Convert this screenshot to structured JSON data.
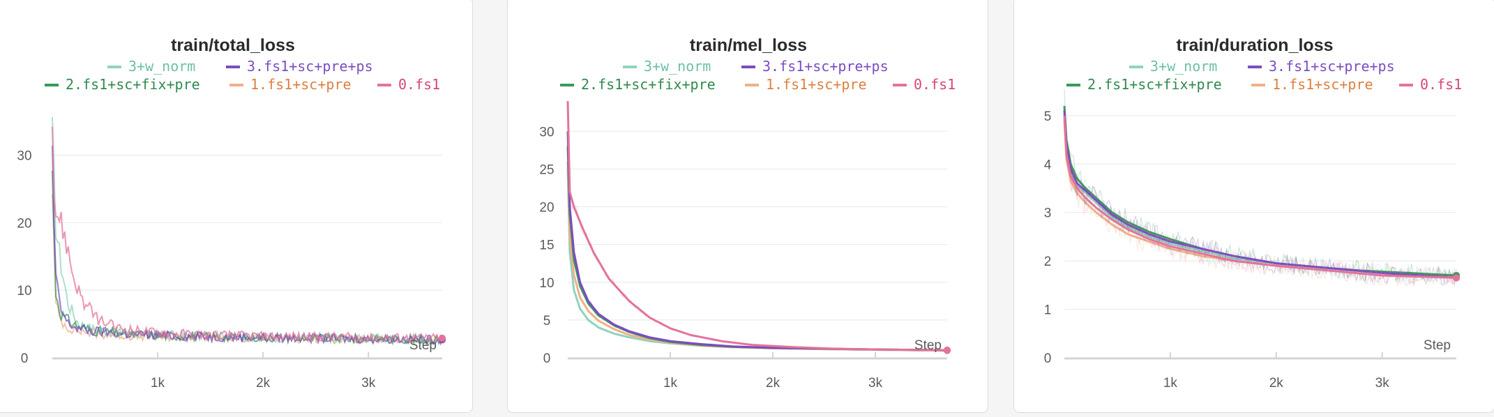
{
  "colors": {
    "3+w_norm": "#8fd3be",
    "3.fs1+sc+pre+ps": "#7b4cc2",
    "2.fs1+sc+fix+pre": "#3a9a5a",
    "1.fs1+sc+pre": "#f0b088",
    "0.fs1": "#e3739a"
  },
  "legend_text_colors": {
    "3+w_norm": "#6cc0a6",
    "3.fs1+sc+pre+ps": "#7b4cc2",
    "2.fs1+sc+fix+pre": "#2f8a4d",
    "1.fs1+sc+pre": "#dd7f3f",
    "0.fs1": "#d9466f"
  },
  "chart_data": [
    {
      "type": "line",
      "title": "train/total_loss",
      "xlabel": "Step",
      "xlim": [
        0,
        3700
      ],
      "ylim": [
        0,
        38
      ],
      "x_ticks": [
        1000,
        2000,
        3000
      ],
      "x_tick_labels": [
        "1k",
        "2k",
        "3k"
      ],
      "y_ticks": [
        0,
        10,
        20,
        30
      ],
      "series": [
        {
          "name": "3+w_norm",
          "x": [
            0,
            30,
            80,
            150,
            250,
            400,
            700,
            1000,
            1500,
            2000,
            2500,
            3000,
            3700
          ],
          "y": [
            33,
            20,
            14,
            8,
            5,
            4.2,
            3.6,
            3.4,
            3.2,
            3.0,
            2.9,
            2.8,
            2.6
          ]
        },
        {
          "name": "3.fs1+sc+pre+ps",
          "x": [
            0,
            30,
            80,
            150,
            250,
            400,
            700,
            1000,
            1500,
            2000,
            2500,
            3000,
            3700
          ],
          "y": [
            30,
            12,
            7,
            5,
            4.3,
            3.9,
            3.5,
            3.3,
            3.1,
            3.0,
            2.9,
            2.8,
            2.7
          ]
        },
        {
          "name": "2.fs1+sc+fix+pre",
          "x": [
            0,
            30,
            80,
            150,
            250,
            400,
            700,
            1000,
            1500,
            2000,
            2500,
            3000,
            3700
          ],
          "y": [
            28,
            10,
            6.5,
            5.5,
            4.6,
            4.0,
            3.5,
            3.3,
            3.1,
            3.0,
            2.9,
            2.8,
            2.7
          ]
        },
        {
          "name": "1.fs1+sc+pre",
          "x": [
            0,
            30,
            80,
            150,
            250,
            400,
            700,
            1000,
            1500,
            2000,
            2500,
            3000,
            3700
          ],
          "y": [
            26,
            8,
            5.5,
            4.5,
            4.0,
            3.6,
            3.3,
            3.1,
            3.0,
            2.9,
            2.8,
            2.7,
            2.6
          ]
        },
        {
          "name": "0.fs1",
          "x": [
            0,
            20,
            60,
            120,
            200,
            300,
            450,
            600,
            800,
            1000,
            1500,
            2000,
            2500,
            3000,
            3700
          ],
          "y": [
            38,
            22,
            21,
            18,
            12,
            8,
            5.5,
            4.5,
            4.0,
            3.7,
            3.4,
            3.2,
            3.1,
            3.0,
            2.9
          ]
        }
      ]
    },
    {
      "type": "line",
      "title": "train/mel_loss",
      "xlabel": "Step",
      "xlim": [
        0,
        3700
      ],
      "ylim": [
        0,
        34
      ],
      "x_ticks": [
        1000,
        2000,
        3000
      ],
      "x_tick_labels": [
        "1k",
        "2k",
        "3k"
      ],
      "y_ticks": [
        0,
        5,
        10,
        15,
        20,
        25,
        30
      ],
      "series": [
        {
          "name": "3+w_norm",
          "x": [
            0,
            20,
            60,
            120,
            200,
            300,
            450,
            600,
            800,
            1000,
            1300,
            1600,
            2000,
            2500,
            3000,
            3700
          ],
          "y": [
            25,
            14,
            9,
            6.5,
            5.0,
            4.0,
            3.2,
            2.7,
            2.2,
            1.9,
            1.6,
            1.4,
            1.25,
            1.15,
            1.05,
            0.95
          ]
        },
        {
          "name": "3.fs1+sc+pre+ps",
          "x": [
            0,
            20,
            60,
            120,
            200,
            300,
            450,
            600,
            800,
            1000,
            1300,
            1600,
            2000,
            2500,
            3000,
            3700
          ],
          "y": [
            30,
            20,
            14,
            10,
            7.5,
            5.8,
            4.4,
            3.5,
            2.7,
            2.2,
            1.8,
            1.5,
            1.3,
            1.2,
            1.1,
            1.0
          ]
        },
        {
          "name": "2.fs1+sc+fix+pre",
          "x": [
            0,
            20,
            60,
            120,
            200,
            300,
            450,
            600,
            800,
            1000,
            1300,
            1600,
            2000,
            2500,
            2750,
            3700
          ],
          "y": [
            28,
            19,
            13,
            9.5,
            7.2,
            5.6,
            4.3,
            3.4,
            2.6,
            2.1,
            1.7,
            1.45,
            1.3,
            1.2,
            1.15,
            1.0
          ]
        },
        {
          "name": "1.fs1+sc+pre",
          "x": [
            0,
            20,
            60,
            120,
            200,
            300,
            450,
            600,
            800,
            1000,
            1300,
            1600,
            2000,
            2500,
            3000,
            3700
          ],
          "y": [
            26,
            16,
            11,
            8,
            6.2,
            4.9,
            3.8,
            3.0,
            2.4,
            2.0,
            1.6,
            1.4,
            1.25,
            1.15,
            1.05,
            0.95
          ]
        },
        {
          "name": "0.fs1",
          "x": [
            0,
            20,
            60,
            150,
            250,
            400,
            600,
            800,
            1000,
            1200,
            1500,
            1800,
            2200,
            2600,
            3000,
            3700
          ],
          "y": [
            34,
            22,
            20,
            17,
            14,
            10.5,
            7.5,
            5.3,
            3.9,
            3.0,
            2.2,
            1.7,
            1.4,
            1.2,
            1.1,
            1.0
          ]
        }
      ]
    },
    {
      "type": "line",
      "title": "train/duration_loss",
      "xlabel": "Step",
      "xlim": [
        0,
        3700
      ],
      "ylim": [
        0,
        5.3
      ],
      "x_ticks": [
        1000,
        2000,
        3000
      ],
      "x_tick_labels": [
        "1k",
        "2k",
        "3k"
      ],
      "y_ticks": [
        0,
        1,
        2,
        3,
        4,
        5
      ],
      "series": [
        {
          "name": "3+w_norm",
          "x": [
            0,
            20,
            60,
            120,
            200,
            300,
            450,
            600,
            800,
            1000,
            1300,
            1600,
            2000,
            2500,
            3000,
            3700
          ],
          "y": [
            5.0,
            4.3,
            3.8,
            3.55,
            3.4,
            3.2,
            2.9,
            2.7,
            2.5,
            2.35,
            2.2,
            2.05,
            1.95,
            1.85,
            1.75,
            1.7
          ]
        },
        {
          "name": "3.fs1+sc+pre+ps",
          "x": [
            0,
            20,
            60,
            120,
            200,
            300,
            450,
            600,
            800,
            1000,
            1300,
            1600,
            2000,
            2500,
            3000,
            3700
          ],
          "y": [
            5.1,
            4.4,
            3.9,
            3.6,
            3.45,
            3.25,
            2.95,
            2.75,
            2.55,
            2.4,
            2.25,
            2.1,
            1.95,
            1.85,
            1.75,
            1.65
          ]
        },
        {
          "name": "2.fs1+sc+fix+pre",
          "x": [
            0,
            20,
            60,
            120,
            200,
            300,
            450,
            600,
            800,
            1000,
            1300,
            1600,
            2000,
            2500,
            2800,
            3700
          ],
          "y": [
            5.2,
            4.5,
            4.0,
            3.7,
            3.5,
            3.3,
            3.0,
            2.8,
            2.6,
            2.45,
            2.25,
            2.1,
            1.95,
            1.85,
            1.8,
            1.7
          ]
        },
        {
          "name": "1.fs1+sc+pre",
          "x": [
            0,
            20,
            60,
            120,
            200,
            300,
            450,
            600,
            800,
            1000,
            1300,
            1600,
            2000,
            2500,
            3000,
            3700
          ],
          "y": [
            4.9,
            4.1,
            3.65,
            3.4,
            3.2,
            3.0,
            2.75,
            2.55,
            2.4,
            2.25,
            2.1,
            2.0,
            1.9,
            1.8,
            1.7,
            1.65
          ]
        },
        {
          "name": "0.fs1",
          "x": [
            0,
            20,
            60,
            120,
            200,
            300,
            450,
            600,
            800,
            1000,
            1300,
            1600,
            2000,
            2500,
            3000,
            3700
          ],
          "y": [
            5.0,
            4.2,
            3.75,
            3.5,
            3.3,
            3.1,
            2.85,
            2.65,
            2.45,
            2.3,
            2.15,
            2.0,
            1.9,
            1.8,
            1.7,
            1.65
          ]
        }
      ]
    }
  ]
}
